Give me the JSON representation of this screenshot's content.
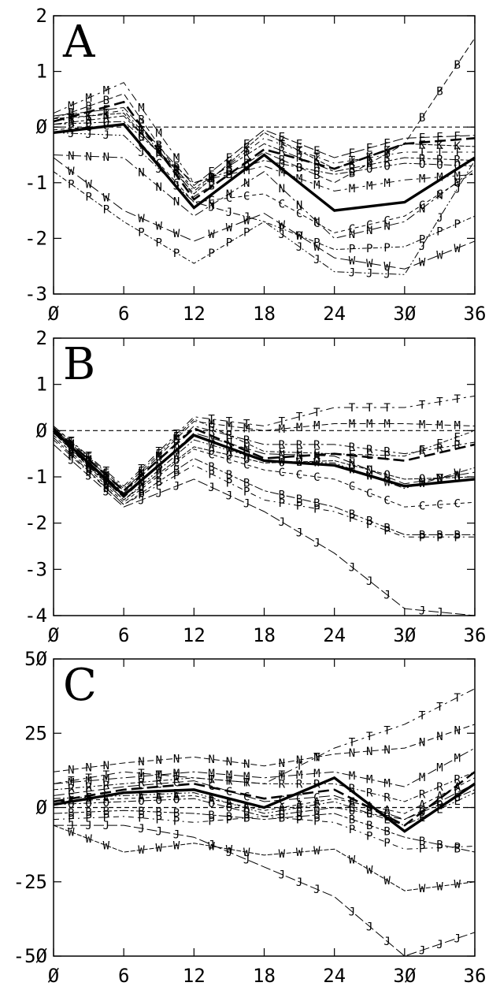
{
  "chart_data": [
    {
      "type": "line",
      "panel_label": "A",
      "x": [
        0,
        6,
        12,
        18,
        24,
        30,
        36
      ],
      "xticks": [
        "Ø",
        "6",
        "12",
        "18",
        "24",
        "3Ø",
        "36"
      ],
      "yticks": [
        "2",
        "1",
        "Ø",
        "-1",
        "-2",
        "-3"
      ],
      "ytick_values": [
        2,
        1,
        0,
        -1,
        -2,
        -3
      ],
      "ylim": [
        -3,
        2
      ],
      "xlim": [
        0,
        36
      ],
      "reference_line": 0,
      "mean_line": [
        -0.1,
        0.05,
        -1.45,
        -0.5,
        -1.5,
        -1.35,
        -0.55
      ],
      "bold_dashed": [
        0.1,
        0.45,
        -1.3,
        -0.4,
        -0.75,
        -0.3,
        -0.2
      ],
      "series": [
        {
          "marker": "M",
          "values": [
            0.25,
            0.8,
            -1.0,
            -0.7,
            -1.15,
            -0.95,
            -0.85
          ]
        },
        {
          "marker": "B",
          "values": [
            0.15,
            0.6,
            -1.25,
            -0.45,
            -1.0,
            -0.3,
            1.6
          ]
        },
        {
          "marker": "N",
          "values": [
            -0.5,
            -0.55,
            -1.6,
            -0.8,
            -2.0,
            -1.7,
            -0.75
          ]
        },
        {
          "marker": "P",
          "values": [
            -0.8,
            -1.7,
            -2.45,
            -1.7,
            -2.2,
            -2.15,
            -1.6
          ]
        },
        {
          "marker": "W",
          "values": [
            -0.55,
            -1.5,
            -2.05,
            -1.55,
            -2.35,
            -2.55,
            -2.05
          ]
        },
        {
          "marker": "J",
          "values": [
            -0.1,
            -0.15,
            -1.35,
            -1.7,
            -2.6,
            -2.65,
            -0.6
          ]
        },
        {
          "marker": "C",
          "values": [
            -0.05,
            0.05,
            -1.35,
            -1.2,
            -1.9,
            -1.6,
            -0.8
          ]
        },
        {
          "marker": "R",
          "values": [
            0.05,
            0.2,
            -1.1,
            -0.3,
            -0.8,
            -0.55,
            -0.6
          ]
        },
        {
          "marker": "T",
          "values": [
            0.1,
            0.3,
            -1.15,
            -0.2,
            -0.65,
            -0.45,
            -0.45
          ]
        },
        {
          "marker": "E",
          "values": [
            0.2,
            0.35,
            -1.05,
            -0.05,
            -0.55,
            -0.2,
            -0.15
          ]
        },
        {
          "marker": "K",
          "values": [
            0.15,
            0.25,
            -1.2,
            -0.1,
            -0.75,
            -0.3,
            -0.35
          ]
        },
        {
          "marker": "O",
          "values": [
            0.05,
            0.1,
            -1.0,
            -0.6,
            -0.85,
            -0.65,
            -0.7
          ]
        }
      ]
    },
    {
      "type": "line",
      "panel_label": "B",
      "x": [
        0,
        6,
        12,
        18,
        24,
        30,
        36
      ],
      "xticks": [
        "Ø",
        "6",
        "12",
        "18",
        "24",
        "3Ø",
        "36"
      ],
      "yticks": [
        "2",
        "1",
        "Ø",
        "-1",
        "-2",
        "-3",
        "-4"
      ],
      "ytick_values": [
        2,
        1,
        0,
        -1,
        -2,
        -3,
        -4
      ],
      "ylim": [
        -4,
        2
      ],
      "xlim": [
        0,
        36
      ],
      "reference_line": 0,
      "mean_line": [
        0.0,
        -1.4,
        -0.1,
        -0.65,
        -0.75,
        -1.2,
        -1.05
      ],
      "bold_dashed": [
        0.05,
        -1.3,
        0.05,
        -0.6,
        -0.5,
        -0.65,
        -0.3
      ],
      "series": [
        {
          "marker": "T",
          "values": [
            0.1,
            -1.2,
            0.3,
            0.1,
            0.5,
            0.5,
            0.75
          ]
        },
        {
          "marker": "M",
          "values": [
            0.05,
            -1.3,
            0.2,
            0.0,
            0.15,
            0.15,
            0.1
          ]
        },
        {
          "marker": "R",
          "values": [
            0.0,
            -1.35,
            0.1,
            -0.3,
            -0.3,
            -0.5,
            -0.25
          ]
        },
        {
          "marker": "E",
          "values": [
            0.1,
            -1.25,
            0.25,
            -0.45,
            -0.5,
            -0.55,
            0.0
          ]
        },
        {
          "marker": "N",
          "values": [
            -0.05,
            -1.45,
            -0.05,
            -0.5,
            -0.55,
            -1.15,
            -0.9
          ]
        },
        {
          "marker": "W",
          "values": [
            0.0,
            -1.5,
            -0.2,
            -0.65,
            -0.7,
            -1.25,
            -0.8
          ]
        },
        {
          "marker": "C",
          "values": [
            -0.1,
            -1.55,
            -0.4,
            -0.85,
            -1.05,
            -1.65,
            -1.55
          ]
        },
        {
          "marker": "B",
          "values": [
            -0.15,
            -1.6,
            -0.6,
            -1.3,
            -1.65,
            -2.25,
            -2.25
          ]
        },
        {
          "marker": "P",
          "values": [
            -0.2,
            -1.6,
            -0.75,
            -1.5,
            -1.75,
            -2.3,
            -2.3
          ]
        },
        {
          "marker": "J",
          "values": [
            -0.3,
            -1.65,
            -1.05,
            -1.75,
            -2.65,
            -3.85,
            -4.0
          ]
        },
        {
          "marker": "O",
          "values": [
            -0.05,
            -1.5,
            -0.35,
            -0.7,
            -0.65,
            -1.05,
            -1.0
          ]
        }
      ]
    },
    {
      "type": "line",
      "panel_label": "C",
      "x": [
        0,
        6,
        12,
        18,
        24,
        30,
        36
      ],
      "xticks": [
        "Ø",
        "6",
        "12",
        "18",
        "24",
        "3Ø",
        "36"
      ],
      "yticks": [
        "5Ø",
        "25",
        "Ø",
        "-25",
        "-5Ø"
      ],
      "ytick_values": [
        50,
        25,
        0,
        -25,
        -50
      ],
      "ylim": [
        -50,
        50
      ],
      "xlim": [
        0,
        36
      ],
      "reference_line": 0,
      "mean_line": [
        1,
        5,
        6,
        0,
        10,
        -8,
        8
      ],
      "bold_dashed": [
        2,
        6,
        8,
        3,
        6,
        -6,
        12
      ],
      "series": [
        {
          "marker": "T",
          "values": [
            8,
            12,
            10,
            8,
            20,
            28,
            40
          ]
        },
        {
          "marker": "N",
          "values": [
            12,
            15,
            17,
            14,
            18,
            20,
            28
          ]
        },
        {
          "marker": "M",
          "values": [
            8,
            10,
            12,
            10,
            12,
            7,
            20
          ]
        },
        {
          "marker": "R",
          "values": [
            6,
            8,
            10,
            8,
            8,
            2,
            12
          ]
        },
        {
          "marker": "C",
          "values": [
            4,
            7,
            9,
            2,
            4,
            -4,
            8
          ]
        },
        {
          "marker": "E",
          "values": [
            3,
            4,
            5,
            -2,
            2,
            -6,
            5
          ]
        },
        {
          "marker": "A",
          "values": [
            2,
            3,
            4,
            -1,
            3,
            -2,
            10
          ]
        },
        {
          "marker": "B",
          "values": [
            -2,
            -1,
            -2,
            -4,
            -2,
            -10,
            -15
          ]
        },
        {
          "marker": "P",
          "values": [
            -4,
            -3,
            -5,
            -3,
            -5,
            -14,
            -13
          ]
        },
        {
          "marker": "J",
          "values": [
            -6,
            -6,
            -10,
            -20,
            -30,
            -50,
            -42
          ]
        },
        {
          "marker": "W",
          "values": [
            -6,
            -15,
            -12,
            -16,
            -14,
            -28,
            -25
          ]
        },
        {
          "marker": "O",
          "values": [
            1,
            2,
            3,
            -3,
            0,
            -4,
            6
          ]
        }
      ]
    }
  ]
}
